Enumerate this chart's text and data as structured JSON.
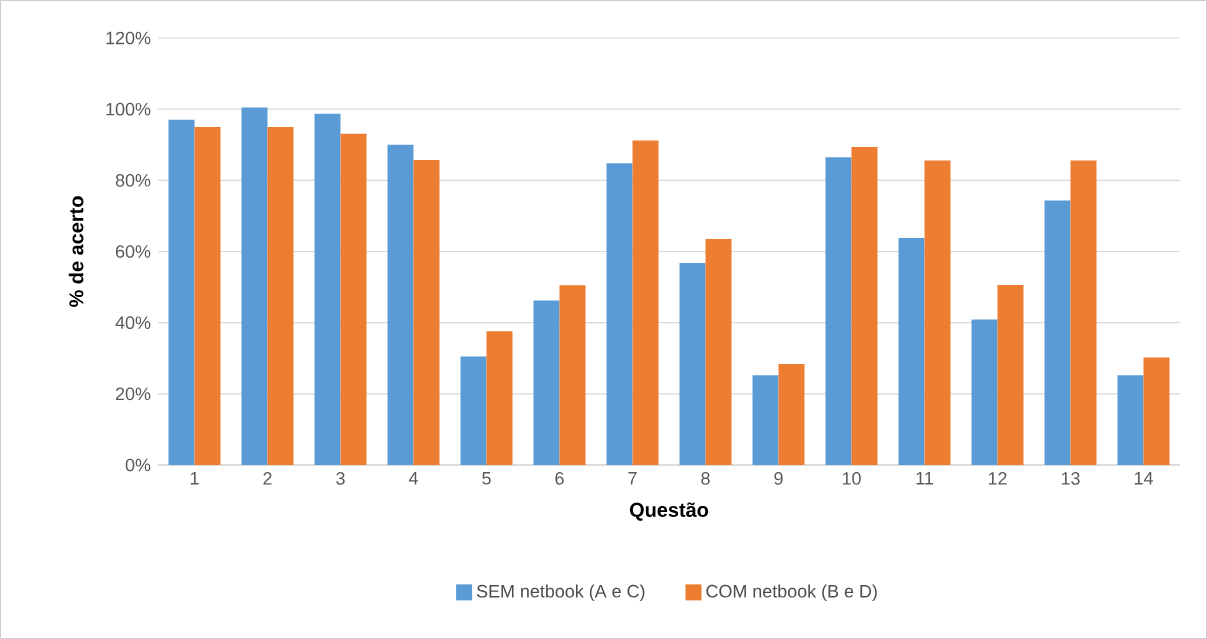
{
  "chart_data": {
    "type": "bar",
    "xlabel": "Questão",
    "ylabel": "% de acerto",
    "categories": [
      "1",
      "2",
      "3",
      "4",
      "5",
      "6",
      "7",
      "8",
      "9",
      "10",
      "11",
      "12",
      "13",
      "14"
    ],
    "series": [
      {
        "name": "SEM netbook (A e C)",
        "color": "#5b9bd5",
        "values": [
          97,
          100.5,
          98.7,
          90,
          30.5,
          46.2,
          84.8,
          56.8,
          25.2,
          86.5,
          63.8,
          40.9,
          74.3,
          25.2
        ]
      },
      {
        "name": "COM netbook (B e D)",
        "color": "#ed7d31",
        "values": [
          95,
          95,
          93.1,
          85.7,
          37.6,
          50.5,
          91.2,
          63.5,
          28.4,
          89.4,
          85.6,
          50.6,
          85.6,
          30.2
        ]
      }
    ],
    "ylim": [
      0,
      120
    ],
    "yticks": [
      {
        "value": 0,
        "label": "0%"
      },
      {
        "value": 20,
        "label": "20%"
      },
      {
        "value": 40,
        "label": "40%"
      },
      {
        "value": 60,
        "label": "60%"
      },
      {
        "value": 80,
        "label": "80%"
      },
      {
        "value": 100,
        "label": "100%"
      },
      {
        "value": 120,
        "label": "120%"
      }
    ],
    "grid": "y",
    "legend": "bottom"
  }
}
